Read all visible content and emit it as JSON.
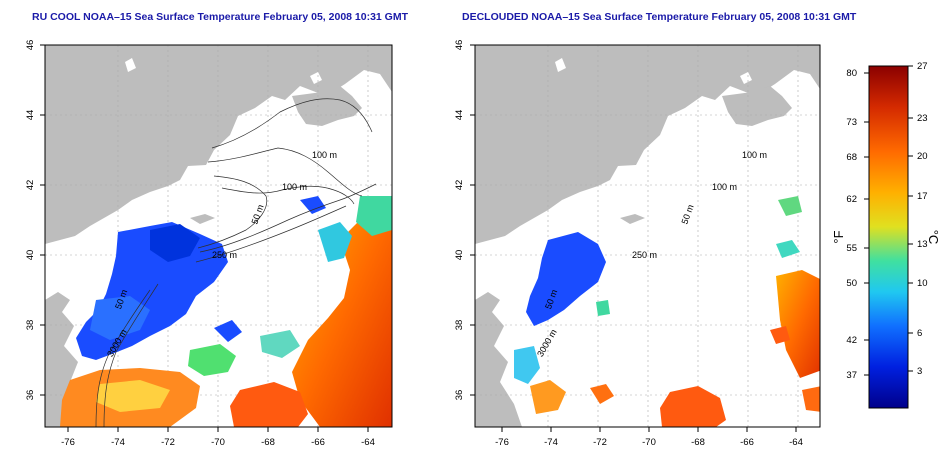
{
  "panels": [
    {
      "title": "RU COOL NOAA–15 Sea Surface Temperature February 05, 2008 10:31 GMT",
      "x_ticks": [
        "-76",
        "-74",
        "-72",
        "-70",
        "-68",
        "-66",
        "-64"
      ],
      "y_ticks": [
        "46",
        "44",
        "42",
        "40",
        "38",
        "36"
      ],
      "contour_labels": [
        "100 m",
        "100 m",
        "50 m",
        "250 m",
        "50 m",
        "3000 m"
      ]
    },
    {
      "title": "DECLOUDED NOAA–15 Sea Surface Temperature February 05, 2008 10:31 GMT",
      "x_ticks": [
        "-76",
        "-74",
        "-72",
        "-70",
        "-68",
        "-66",
        "-64"
      ],
      "y_ticks": [
        "46",
        "44",
        "42",
        "40",
        "38",
        "36"
      ],
      "contour_labels": [
        "100 m",
        "100 m",
        "50 m",
        "250 m",
        "50 m",
        "3000 m"
      ]
    }
  ],
  "colorbar": {
    "fahrenheit_ticks": [
      "80",
      "73",
      "68",
      "62",
      "55",
      "50",
      "42",
      "37"
    ],
    "celsius_ticks": [
      "27",
      "23",
      "20",
      "17",
      "13",
      "10",
      "6",
      "3"
    ],
    "fahrenheit_label": "°F",
    "celsius_label": "°C",
    "gradient": [
      "#8b0000",
      "#d42a00",
      "#ff6a00",
      "#ffb000",
      "#e0e020",
      "#40e0a0",
      "#20c8f0",
      "#1070ff",
      "#0020e0",
      "#00008b"
    ]
  },
  "colors": {
    "land": "#bdbdbd",
    "blue_water": "#1a4cff",
    "warm_water": "#ff5a10"
  }
}
